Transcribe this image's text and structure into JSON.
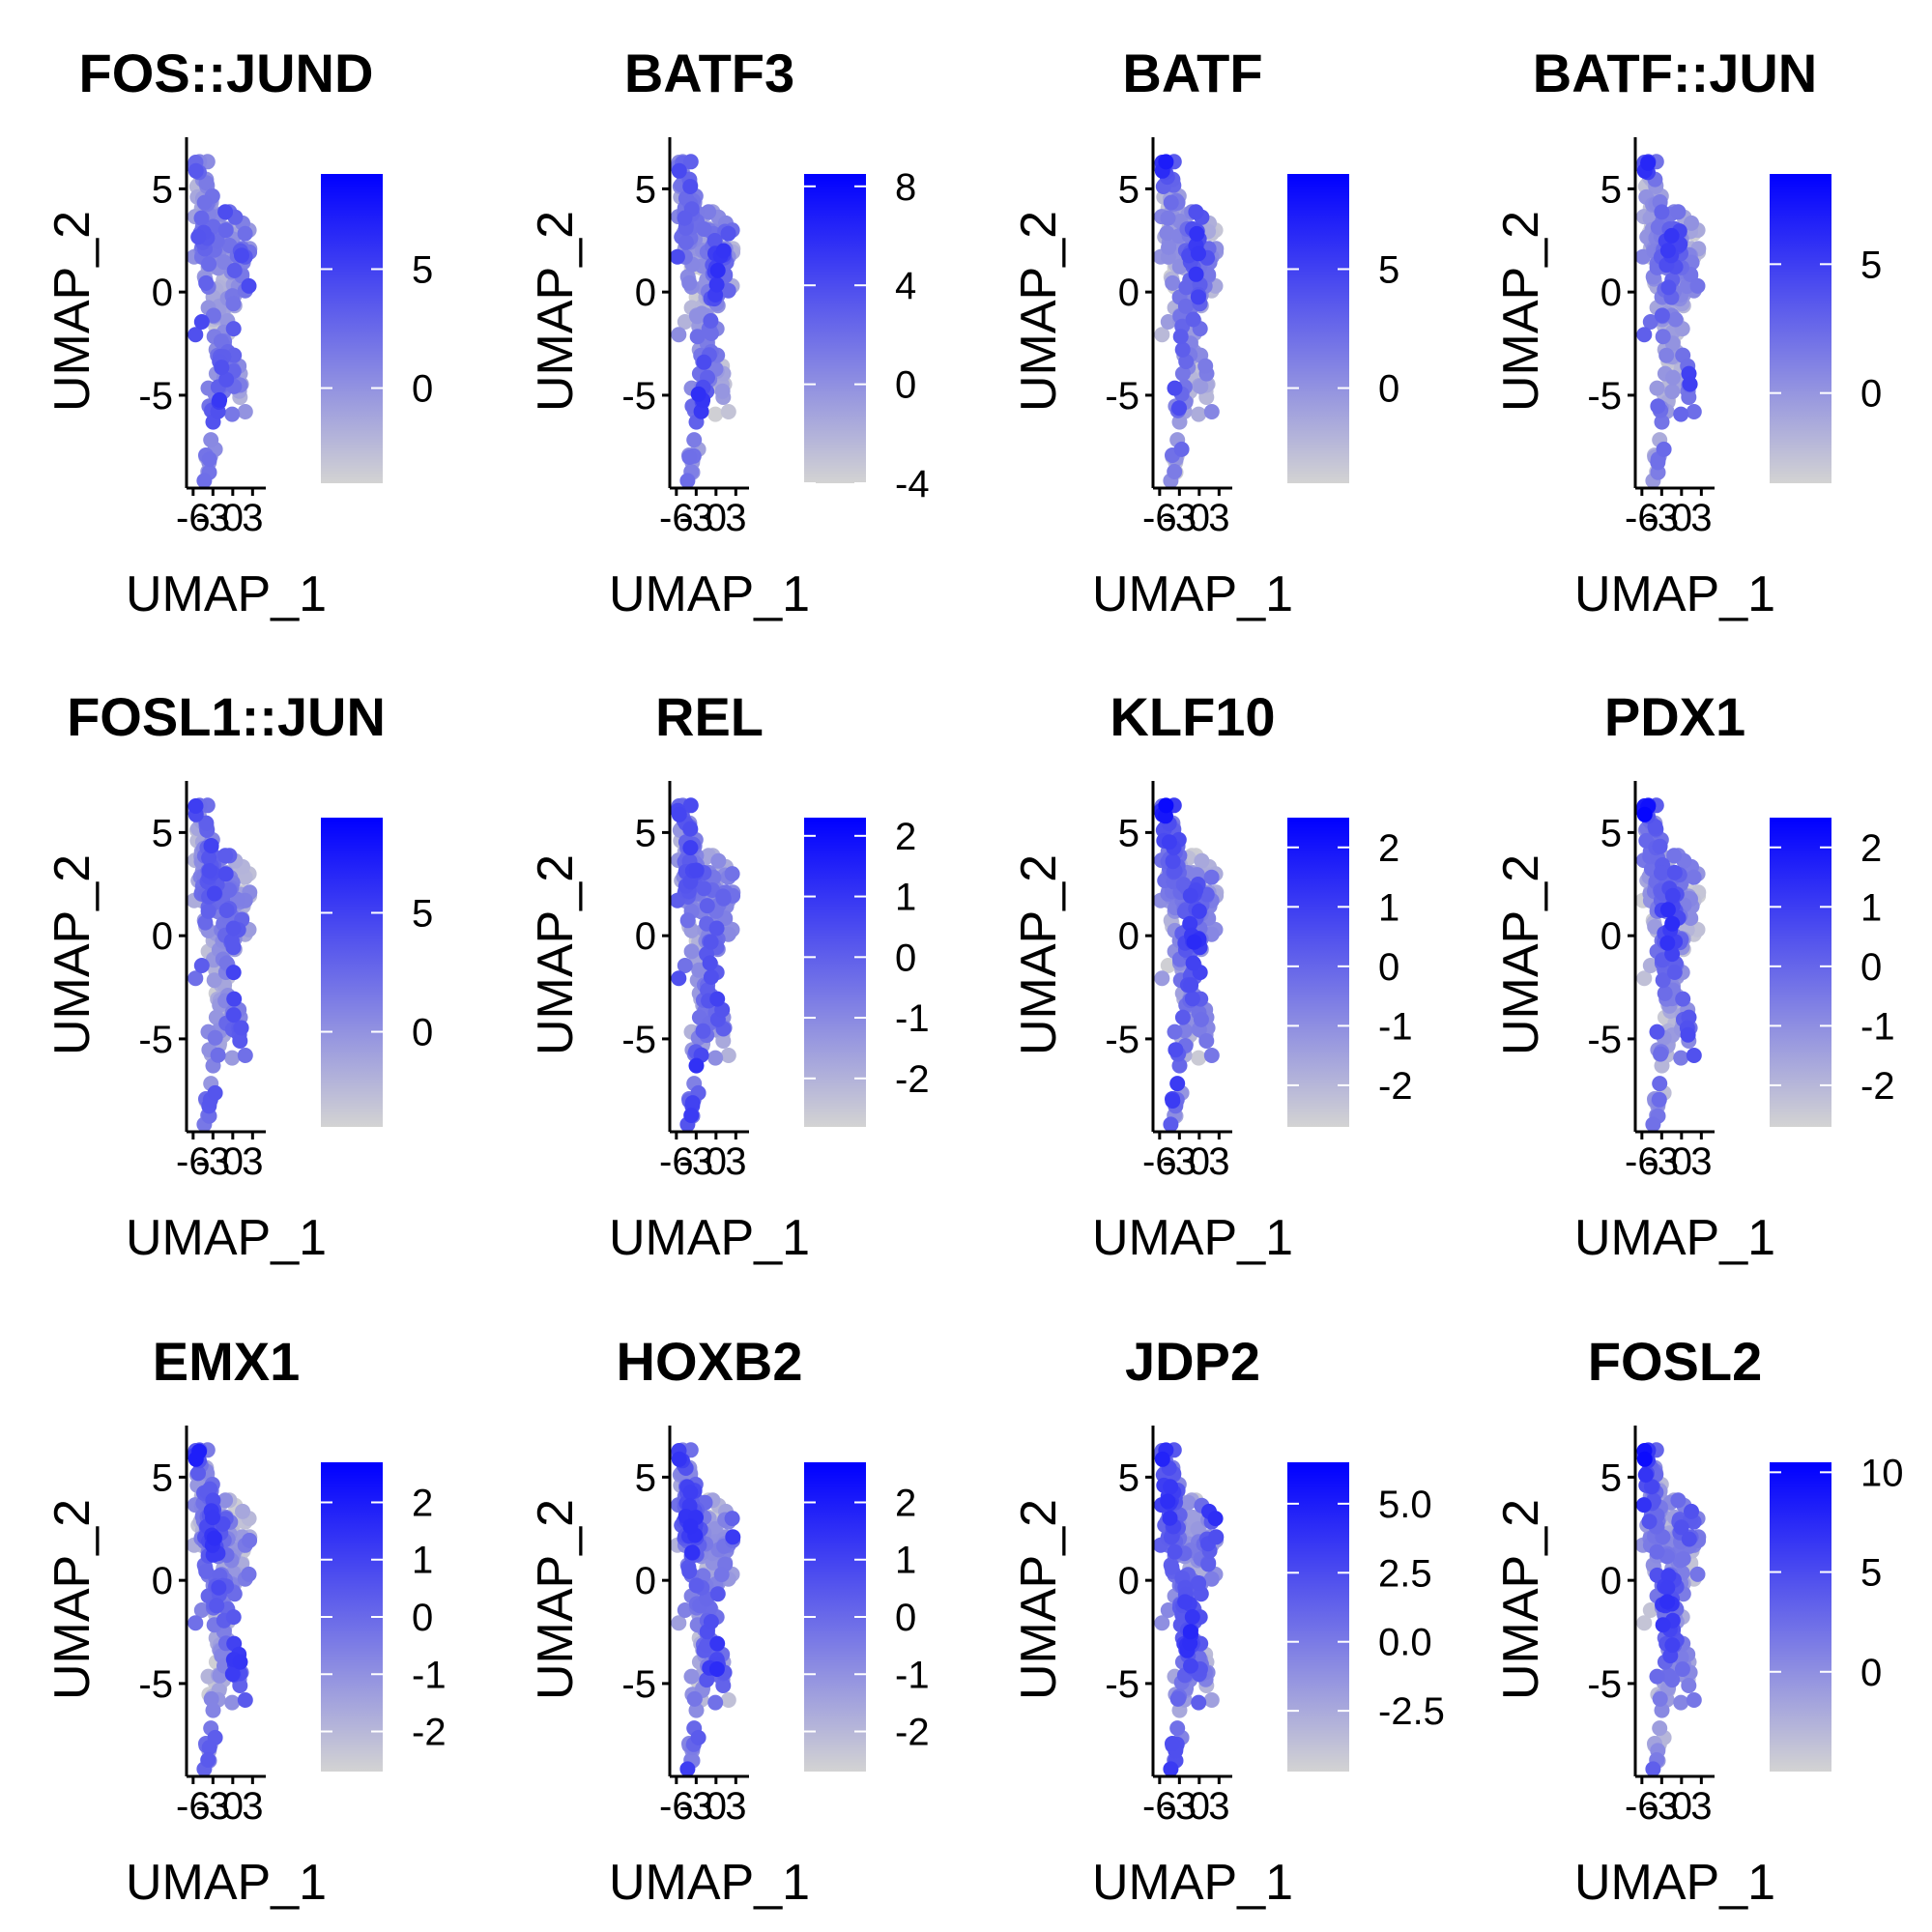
{
  "chart_data": [
    {
      "type": "scatter",
      "title": "FOS::JUND",
      "xlabel": "UMAP_1",
      "ylabel": "UMAP_2",
      "x_ticks": [
        "-6",
        "-3",
        "0",
        "3"
      ],
      "y_ticks": [
        "-5",
        "0",
        "5"
      ],
      "xlim": [
        -7,
        5
      ],
      "ylim": [
        -9.5,
        7.5
      ],
      "legend_ticks": [
        "0",
        "5"
      ],
      "legend_range": [
        -4,
        9
      ],
      "color_low": "#d3d3d3",
      "color_high": "#0000ff"
    },
    {
      "type": "scatter",
      "title": "BATF3",
      "xlabel": "UMAP_1",
      "ylabel": "UMAP_2",
      "x_ticks": [
        "-6",
        "-3",
        "0",
        "3"
      ],
      "y_ticks": [
        "-5",
        "0",
        "5"
      ],
      "xlim": [
        -7,
        5
      ],
      "ylim": [
        -9.5,
        7.5
      ],
      "legend_ticks": [
        "-4",
        "0",
        "4",
        "8"
      ],
      "legend_range": [
        -4,
        8.5
      ],
      "color_low": "#d3d3d3",
      "color_high": "#0000ff"
    },
    {
      "type": "scatter",
      "title": "BATF",
      "xlabel": "UMAP_1",
      "ylabel": "UMAP_2",
      "x_ticks": [
        "-6",
        "-3",
        "0",
        "3"
      ],
      "y_ticks": [
        "-5",
        "0",
        "5"
      ],
      "xlim": [
        -7,
        5
      ],
      "ylim": [
        -9.5,
        7.5
      ],
      "legend_ticks": [
        "0",
        "5"
      ],
      "legend_range": [
        -4,
        9
      ],
      "color_low": "#d3d3d3",
      "color_high": "#0000ff"
    },
    {
      "type": "scatter",
      "title": "BATF::JUN",
      "xlabel": "UMAP_1",
      "ylabel": "UMAP_2",
      "x_ticks": [
        "-6",
        "-3",
        "0",
        "3"
      ],
      "y_ticks": [
        "-5",
        "0",
        "5"
      ],
      "xlim": [
        -7,
        5
      ],
      "ylim": [
        -9.5,
        7.5
      ],
      "legend_ticks": [
        "0",
        "5"
      ],
      "legend_range": [
        -3.5,
        8.5
      ],
      "color_low": "#d3d3d3",
      "color_high": "#0000ff"
    },
    {
      "type": "scatter",
      "title": "FOSL1::JUN",
      "xlabel": "UMAP_1",
      "ylabel": "UMAP_2",
      "x_ticks": [
        "-6",
        "-3",
        "0",
        "3"
      ],
      "y_ticks": [
        "-5",
        "0",
        "5"
      ],
      "xlim": [
        -7,
        5
      ],
      "ylim": [
        -9.5,
        7.5
      ],
      "legend_ticks": [
        "0",
        "5"
      ],
      "legend_range": [
        -4,
        9
      ],
      "color_low": "#d3d3d3",
      "color_high": "#0000ff"
    },
    {
      "type": "scatter",
      "title": "REL",
      "xlabel": "UMAP_1",
      "ylabel": "UMAP_2",
      "x_ticks": [
        "-6",
        "-3",
        "0",
        "3"
      ],
      "y_ticks": [
        "-5",
        "0",
        "5"
      ],
      "xlim": [
        -7,
        5
      ],
      "ylim": [
        -9.5,
        7.5
      ],
      "legend_ticks": [
        "-2",
        "-1",
        "0",
        "1",
        "2"
      ],
      "legend_range": [
        -2.8,
        2.3
      ],
      "color_low": "#d3d3d3",
      "color_high": "#0000ff"
    },
    {
      "type": "scatter",
      "title": "KLF10",
      "xlabel": "UMAP_1",
      "ylabel": "UMAP_2",
      "x_ticks": [
        "-6",
        "-3",
        "0",
        "3"
      ],
      "y_ticks": [
        "-5",
        "0",
        "5"
      ],
      "xlim": [
        -7,
        5
      ],
      "ylim": [
        -9.5,
        7.5
      ],
      "legend_ticks": [
        "-2",
        "-1",
        "0",
        "1",
        "2"
      ],
      "legend_range": [
        -2.7,
        2.5
      ],
      "color_low": "#d3d3d3",
      "color_high": "#0000ff"
    },
    {
      "type": "scatter",
      "title": "PDX1",
      "xlabel": "UMAP_1",
      "ylabel": "UMAP_2",
      "x_ticks": [
        "-6",
        "-3",
        "0",
        "3"
      ],
      "y_ticks": [
        "-5",
        "0",
        "5"
      ],
      "xlim": [
        -7,
        5
      ],
      "ylim": [
        -9.5,
        7.5
      ],
      "legend_ticks": [
        "-2",
        "-1",
        "0",
        "1",
        "2"
      ],
      "legend_range": [
        -2.7,
        2.5
      ],
      "color_low": "#d3d3d3",
      "color_high": "#0000ff"
    },
    {
      "type": "scatter",
      "title": "EMX1",
      "xlabel": "UMAP_1",
      "ylabel": "UMAP_2",
      "x_ticks": [
        "-6",
        "-3",
        "0",
        "3"
      ],
      "y_ticks": [
        "-5",
        "0",
        "5"
      ],
      "xlim": [
        -7,
        5
      ],
      "ylim": [
        -9.5,
        7.5
      ],
      "legend_ticks": [
        "-2",
        "-1",
        "0",
        "1",
        "2"
      ],
      "legend_range": [
        -2.7,
        2.7
      ],
      "color_low": "#d3d3d3",
      "color_high": "#0000ff"
    },
    {
      "type": "scatter",
      "title": "HOXB2",
      "xlabel": "UMAP_1",
      "ylabel": "UMAP_2",
      "x_ticks": [
        "-6",
        "-3",
        "0",
        "3"
      ],
      "y_ticks": [
        "-5",
        "0",
        "5"
      ],
      "xlim": [
        -7,
        5
      ],
      "ylim": [
        -9.5,
        7.5
      ],
      "legend_ticks": [
        "-2",
        "-1",
        "0",
        "1",
        "2"
      ],
      "legend_range": [
        -2.7,
        2.7
      ],
      "color_low": "#d3d3d3",
      "color_high": "#0000ff"
    },
    {
      "type": "scatter",
      "title": "JDP2",
      "xlabel": "UMAP_1",
      "ylabel": "UMAP_2",
      "x_ticks": [
        "-6",
        "-3",
        "0",
        "3"
      ],
      "y_ticks": [
        "-5",
        "0",
        "5"
      ],
      "xlim": [
        -7,
        5
      ],
      "ylim": [
        -9.5,
        7.5
      ],
      "legend_ticks": [
        "-2.5",
        "0.0",
        "2.5",
        "5.0"
      ],
      "legend_range": [
        -4.7,
        6.5
      ],
      "color_low": "#d3d3d3",
      "color_high": "#0000ff"
    },
    {
      "type": "scatter",
      "title": "FOSL2",
      "xlabel": "UMAP_1",
      "ylabel": "UMAP_2",
      "x_ticks": [
        "-6",
        "-3",
        "0",
        "3"
      ],
      "y_ticks": [
        "-5",
        "0",
        "5"
      ],
      "xlim": [
        -7,
        5
      ],
      "ylim": [
        -9.5,
        7.5
      ],
      "legend_ticks": [
        "0",
        "5",
        "10"
      ],
      "legend_range": [
        -5,
        10.5
      ],
      "color_low": "#d3d3d3",
      "color_high": "#0000ff"
    }
  ]
}
